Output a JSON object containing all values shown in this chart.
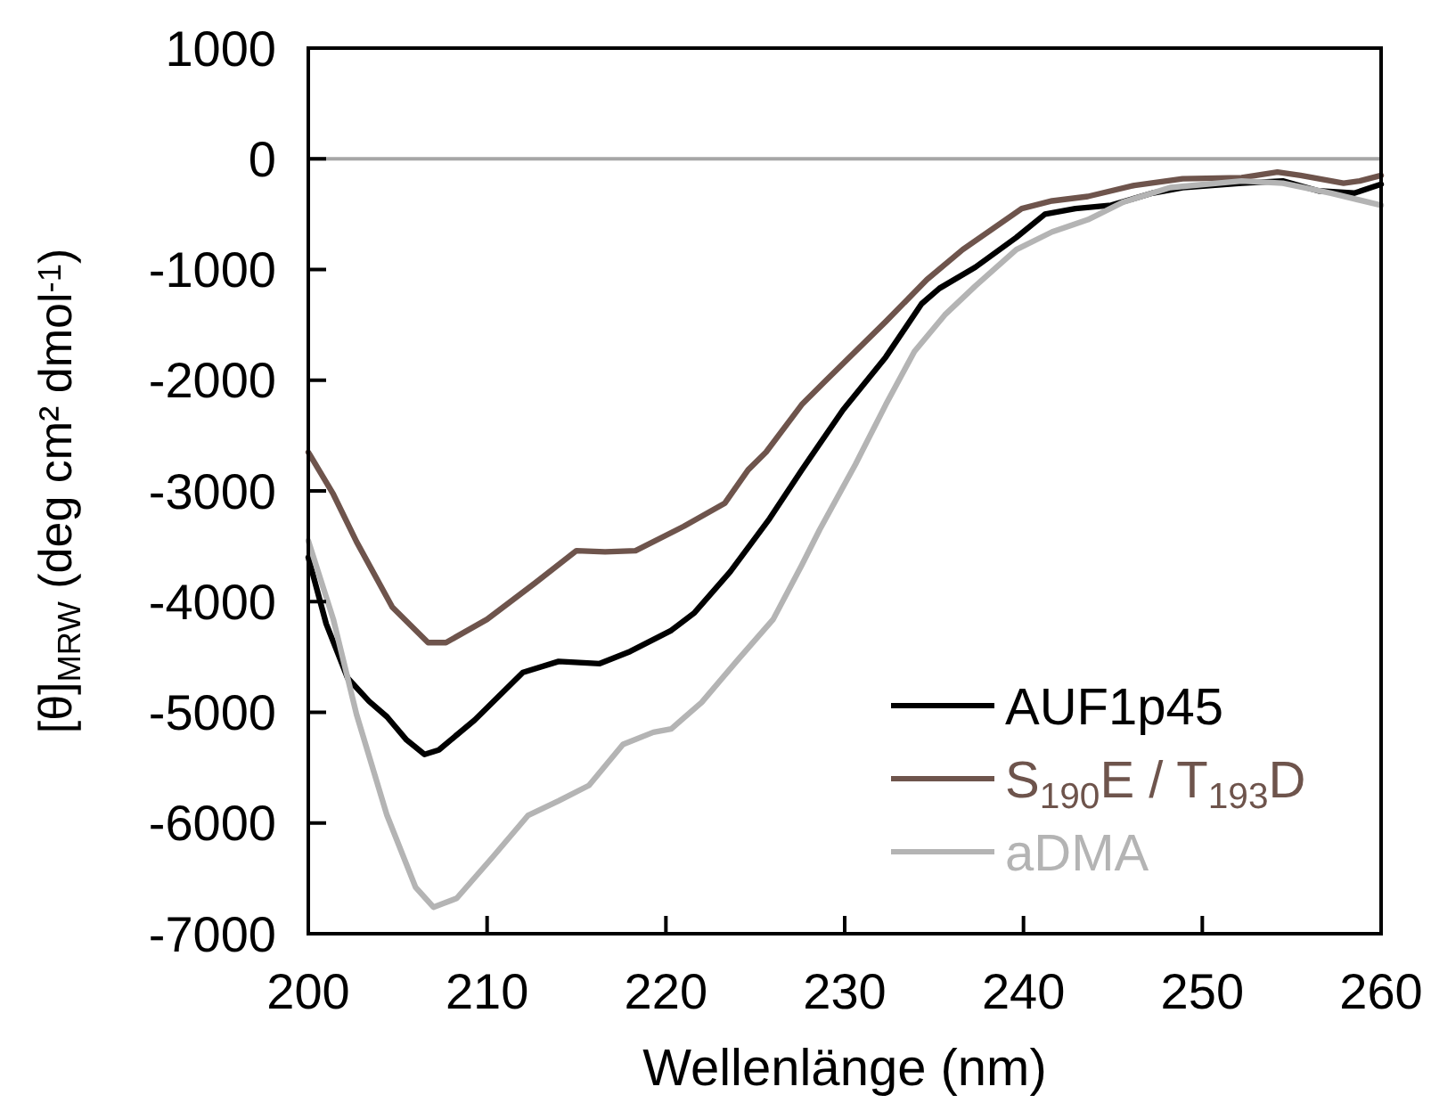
{
  "chart_data": {
    "type": "line",
    "xlabel": "Wellenlänge (nm)",
    "ylabel": "[θ]$_{MRW}$ (deg cm² dmol$^{-1}$)",
    "xlim": [
      200,
      260
    ],
    "xticks": [
      200,
      210,
      220,
      230,
      240,
      250,
      260
    ],
    "ylim": [
      -7000,
      1000
    ],
    "yticks": [
      1000,
      0,
      -1000,
      -2000,
      -3000,
      -4000,
      -5000,
      -6000,
      -7000
    ],
    "grid": false,
    "legend": "bottom right",
    "line_style": "solid",
    "marker": "none",
    "ref_lines": [
      {
        "axis": "y",
        "value": 0,
        "color": "#a6a6a6"
      }
    ],
    "series": [
      {
        "name": "AUF1p45",
        "color": "#000000",
        "x": [
          200,
          201,
          202.2,
          203.4,
          204.4,
          205.5,
          206.5,
          207.3,
          209.3,
          212,
          214,
          216.3,
          218,
          220.3,
          221.6,
          223.6,
          225.8,
          227.6,
          229.9,
          232.3,
          234.3,
          235.3,
          237.3,
          239.6,
          241.2,
          242.9,
          244.9,
          247.2,
          248.9,
          252.2,
          254.5,
          256.5,
          258.5,
          260
        ],
        "values": [
          -3600,
          -4200,
          -4690,
          -4900,
          -5040,
          -5250,
          -5380,
          -5340,
          -5070,
          -4640,
          -4540,
          -4560,
          -4450,
          -4260,
          -4100,
          -3730,
          -3250,
          -2810,
          -2270,
          -1790,
          -1310,
          -1170,
          -980,
          -710,
          -500,
          -450,
          -420,
          -310,
          -260,
          -220,
          -200,
          -290,
          -310,
          -230
        ]
      },
      {
        "name": "S$_{190}$E / T$_{193}$D",
        "color": "#6e544c",
        "x": [
          200,
          201.4,
          202.7,
          204.7,
          206.7,
          207.7,
          210,
          212.7,
          215,
          216.6,
          218.3,
          221,
          223.3,
          224.6,
          225.6,
          227.6,
          228.9,
          232.3,
          234.6,
          236.6,
          239.9,
          241.6,
          243.6,
          246.2,
          248.9,
          252.2,
          254.2,
          255.5,
          257.9,
          258.8,
          260
        ],
        "values": [
          -2650,
          -3030,
          -3460,
          -4050,
          -4370,
          -4370,
          -4160,
          -3830,
          -3540,
          -3550,
          -3540,
          -3320,
          -3110,
          -2810,
          -2650,
          -2220,
          -2010,
          -1470,
          -1090,
          -820,
          -450,
          -380,
          -340,
          -240,
          -180,
          -170,
          -120,
          -150,
          -220,
          -200,
          -150
        ]
      },
      {
        "name": "aDMA",
        "color": "#b4b4b4",
        "x": [
          200,
          201.4,
          202.7,
          204.4,
          206,
          207,
          208.3,
          210.3,
          212.3,
          214,
          215.7,
          217.6,
          219.3,
          220.3,
          222,
          224,
          226,
          227.6,
          228.6,
          230.6,
          232.3,
          233.9,
          235.6,
          237.3,
          239.6,
          241.6,
          243.6,
          245.6,
          248.2,
          252.2,
          254.5,
          257.2,
          260
        ],
        "values": [
          -3450,
          -4160,
          -5020,
          -5930,
          -6580,
          -6760,
          -6680,
          -6310,
          -5930,
          -5800,
          -5660,
          -5290,
          -5180,
          -5150,
          -4910,
          -4530,
          -4160,
          -3670,
          -3350,
          -2760,
          -2220,
          -1740,
          -1410,
          -1150,
          -820,
          -660,
          -550,
          -390,
          -260,
          -200,
          -220,
          -310,
          -420
        ]
      }
    ]
  }
}
